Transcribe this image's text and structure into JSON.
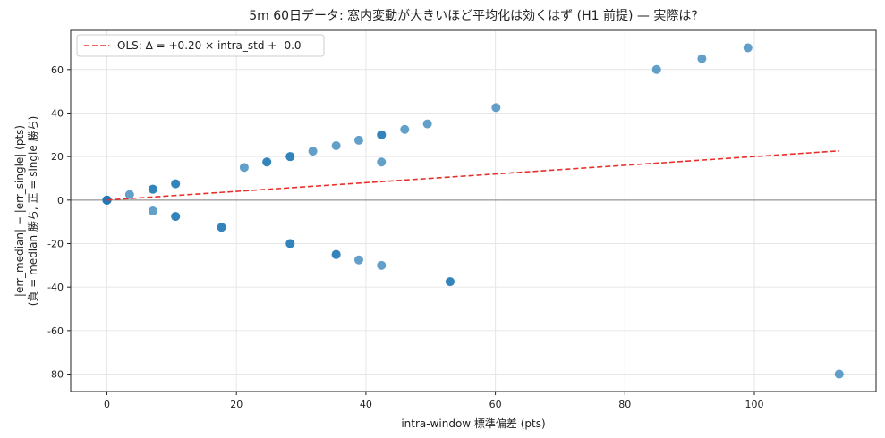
{
  "chart_data": {
    "type": "scatter",
    "title": "5m 60日データ: 窓内変動が大きいほど平均化は効くはず (H1 前提) — 実際は?",
    "xlabel": "intra-window 標準偏差 (pts)",
    "ylabel_line1": "|err_median| − |err_single| (pts)",
    "ylabel_line2": "(負 = median 勝ち, 正 = single 勝ち)",
    "xlim": [
      -5.6,
      118.8
    ],
    "ylim": [
      -88,
      78
    ],
    "x_ticks": [
      0,
      20,
      40,
      60,
      80,
      100
    ],
    "y_ticks": [
      60,
      40,
      20,
      0,
      -20,
      -40,
      -60,
      -80
    ],
    "x_tick_labels": [
      "0",
      "20",
      "40",
      "60",
      "80",
      "100"
    ],
    "y_tick_labels": [
      "60",
      "40",
      "20",
      "0",
      "-20",
      "-40",
      "-60",
      "-80"
    ],
    "grid": true,
    "zero_line": true,
    "legend_position": "top-left",
    "points": [
      {
        "x": 0,
        "y": 0
      },
      {
        "x": 0,
        "y": 0
      },
      {
        "x": 0,
        "y": 0
      },
      {
        "x": 0,
        "y": 0
      },
      {
        "x": 3.5,
        "y": 2.5
      },
      {
        "x": 7.1,
        "y": 5.0
      },
      {
        "x": 7.1,
        "y": 5.0
      },
      {
        "x": 7.1,
        "y": -5.0
      },
      {
        "x": 10.6,
        "y": 7.5
      },
      {
        "x": 10.6,
        "y": 7.5
      },
      {
        "x": 10.6,
        "y": -7.5
      },
      {
        "x": 10.6,
        "y": -7.5
      },
      {
        "x": 17.7,
        "y": -12.5
      },
      {
        "x": 17.7,
        "y": -12.5
      },
      {
        "x": 21.2,
        "y": 15.0
      },
      {
        "x": 24.7,
        "y": 17.5
      },
      {
        "x": 24.7,
        "y": 17.5
      },
      {
        "x": 28.3,
        "y": 20.0
      },
      {
        "x": 28.3,
        "y": 20.0
      },
      {
        "x": 28.3,
        "y": -20.0
      },
      {
        "x": 28.3,
        "y": -20.0
      },
      {
        "x": 31.8,
        "y": 22.5
      },
      {
        "x": 35.4,
        "y": 25.0
      },
      {
        "x": 35.4,
        "y": -25.0
      },
      {
        "x": 35.4,
        "y": -25.0
      },
      {
        "x": 38.9,
        "y": 27.5
      },
      {
        "x": 38.9,
        "y": -27.5
      },
      {
        "x": 42.4,
        "y": 30.0
      },
      {
        "x": 42.4,
        "y": 30.0
      },
      {
        "x": 42.4,
        "y": 17.5
      },
      {
        "x": 42.4,
        "y": -30.0
      },
      {
        "x": 46.0,
        "y": 32.5
      },
      {
        "x": 49.5,
        "y": 35.0
      },
      {
        "x": 53.0,
        "y": -37.5
      },
      {
        "x": 53.0,
        "y": -37.5
      },
      {
        "x": 60.1,
        "y": 42.5
      },
      {
        "x": 84.9,
        "y": 60.0
      },
      {
        "x": 91.9,
        "y": 65.0
      },
      {
        "x": 99.0,
        "y": 70.0
      },
      {
        "x": 113.1,
        "y": -80.0
      }
    ],
    "fit": {
      "label": "OLS: Δ = +0.20 × intra_std + -0.0",
      "slope": 0.2,
      "intercept": 0.0,
      "x_range": [
        0,
        113.1
      ]
    },
    "colors": {
      "points": "#1f77b4",
      "fit": "#e8302a",
      "zero_line": "#808080",
      "grid": "#e6e6e6",
      "axes": "#222222"
    }
  }
}
